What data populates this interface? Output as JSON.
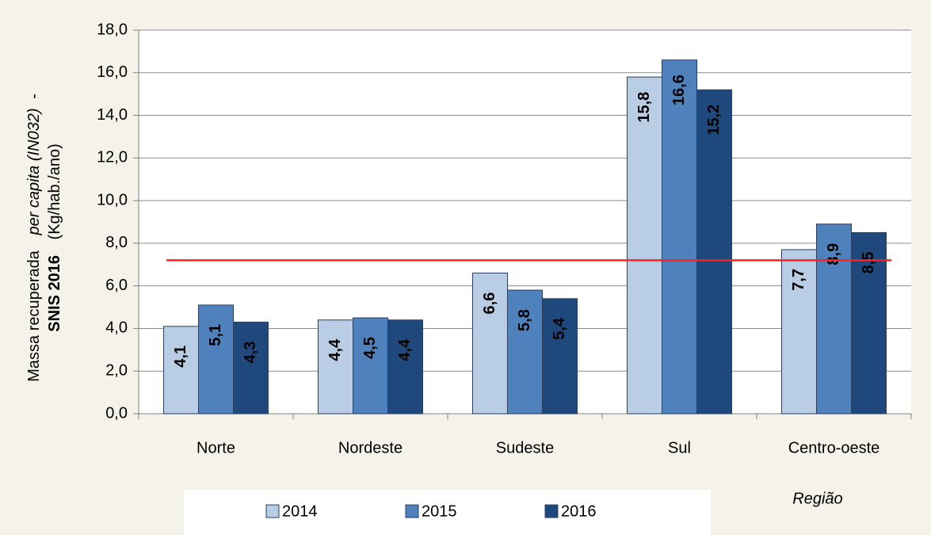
{
  "chart_data": {
    "type": "bar",
    "y_label": {
      "line1": [
        "Massa recuperada",
        "per capita (IN032)",
        "-"
      ],
      "line2": [
        "SNIS 2016",
        "(Kg/hab./ano)"
      ]
    },
    "x_label": "Região",
    "categories": [
      "Norte",
      "Nordeste",
      "Sudeste",
      "Sul",
      "Centro-oeste"
    ],
    "series": [
      {
        "name": "2014",
        "color": "#b9cde5",
        "values": [
          4.1,
          4.4,
          6.6,
          15.8,
          7.7
        ],
        "value_labels": [
          "4,1",
          "4,4",
          "6,6",
          "15,8",
          "7,7"
        ]
      },
      {
        "name": "2015",
        "color": "#4f81bd",
        "values": [
          5.1,
          4.5,
          5.8,
          16.6,
          8.9
        ],
        "value_labels": [
          "5,1",
          "4,5",
          "5,8",
          "16,6",
          "8,9"
        ]
      },
      {
        "name": "2016",
        "color": "#1f497d",
        "values": [
          4.3,
          4.4,
          5.4,
          15.2,
          8.5
        ],
        "value_labels": [
          "4,3",
          "4,4",
          "5,4",
          "15,2",
          "8,5"
        ]
      }
    ],
    "reference_line": {
      "value": 7.2,
      "color": "#ff2020"
    },
    "ylim": [
      0,
      18
    ],
    "yticks": [
      {
        "value": 0,
        "label": "0,0"
      },
      {
        "value": 2,
        "label": "2,0"
      },
      {
        "value": 4,
        "label": "4,0"
      },
      {
        "value": 6,
        "label": "6,0"
      },
      {
        "value": 8,
        "label": "8,0"
      },
      {
        "value": 10,
        "label": "10,0"
      },
      {
        "value": 12,
        "label": "12,0"
      },
      {
        "value": 14,
        "label": "14,0"
      },
      {
        "value": 16,
        "label": "16,0"
      },
      {
        "value": 18,
        "label": "18,0"
      }
    ],
    "grid": true
  }
}
